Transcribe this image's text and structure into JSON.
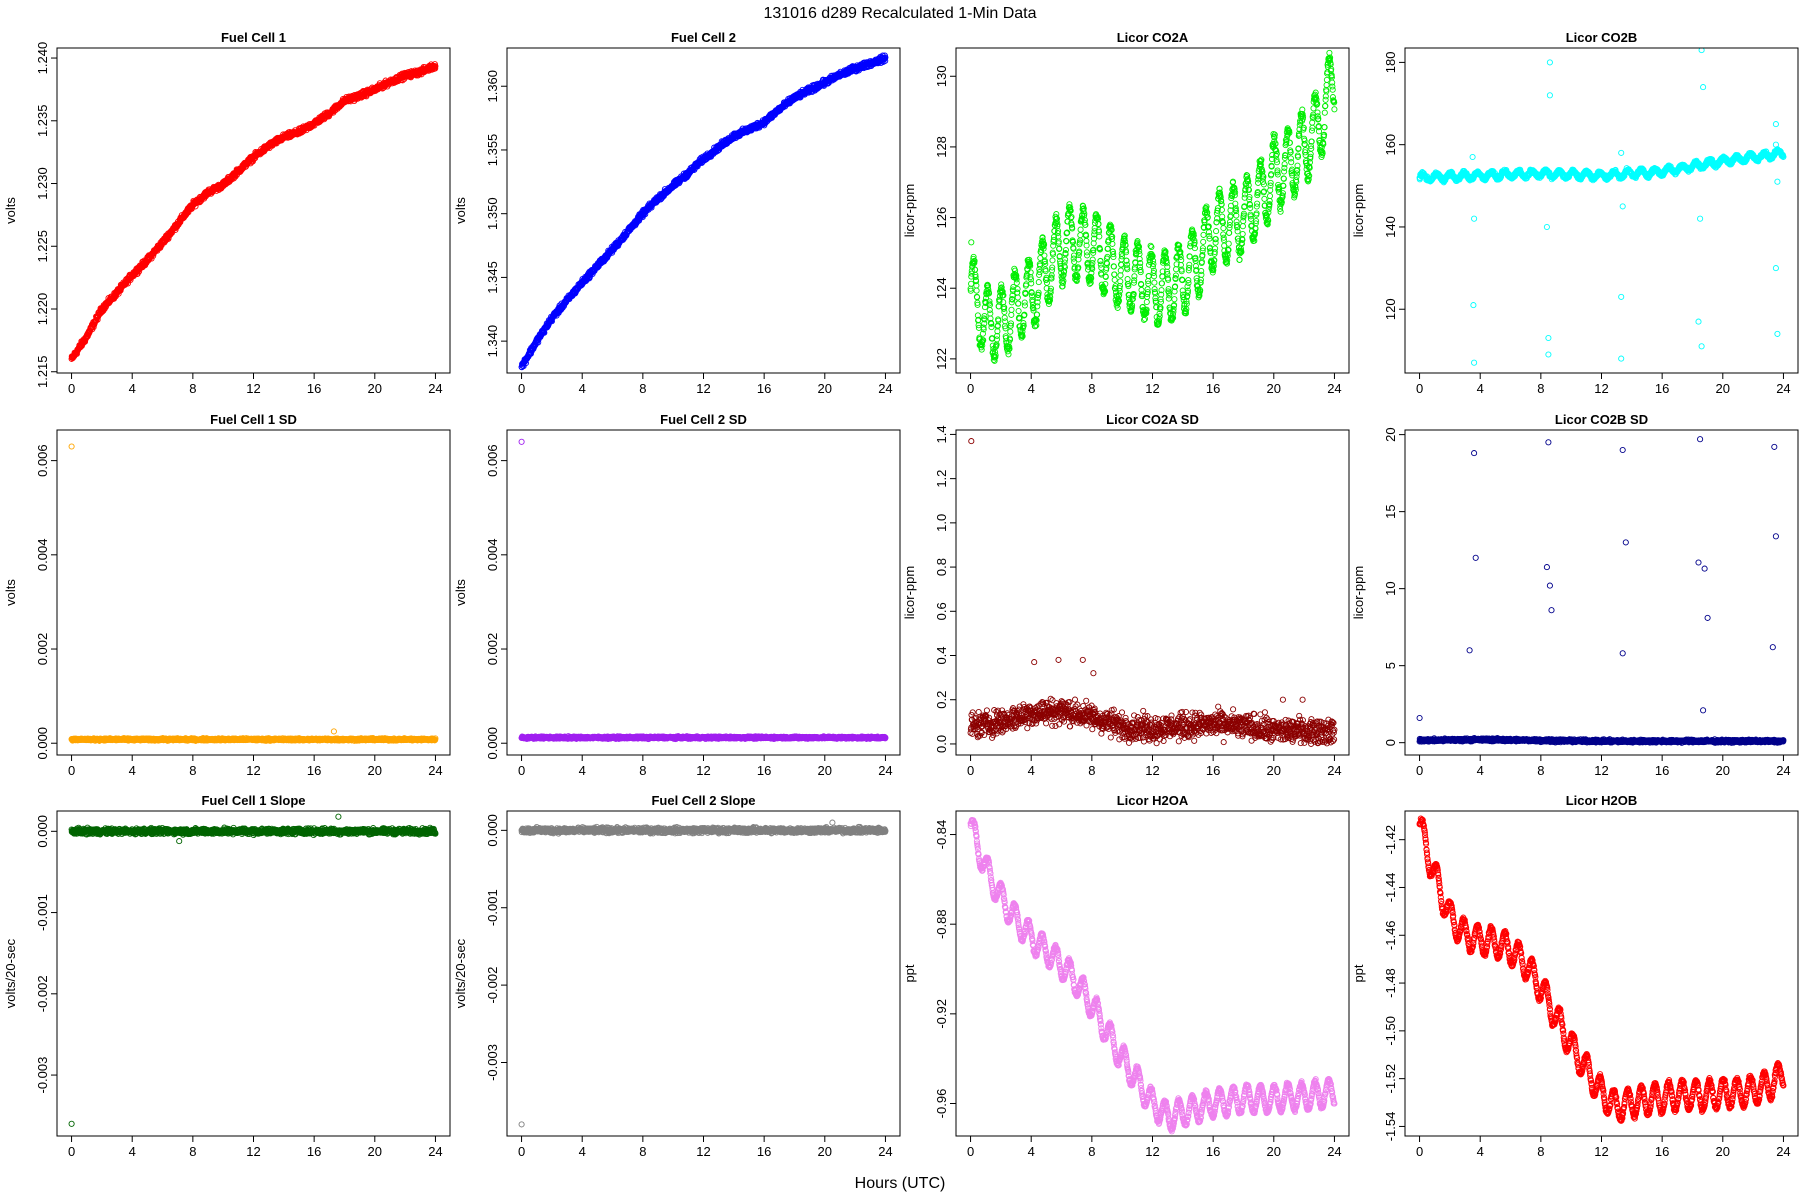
{
  "figure": {
    "title": "131016   d289   Recalculated 1-Min Data",
    "xlabel": "Hours (UTC)"
  },
  "chart_data": [
    {
      "type": "scatter",
      "title": "Fuel Cell 1",
      "ylabel": "volts",
      "xlabel": "",
      "color": "#ff0000",
      "xlim": [
        -0.96,
        24.96
      ],
      "xticks": [
        0,
        4,
        8,
        12,
        16,
        20,
        24
      ],
      "ylim": [
        1.2149,
        1.2408
      ],
      "yticks": [
        1.215,
        1.22,
        1.225,
        1.23,
        1.235,
        1.24
      ],
      "x": [
        0,
        1,
        2,
        3,
        4,
        5,
        6,
        7,
        8,
        9,
        10,
        11,
        12,
        13,
        14,
        15,
        16,
        17,
        18,
        19,
        20,
        21,
        22,
        23,
        24
      ],
      "y": [
        1.216,
        1.2178,
        1.22,
        1.2213,
        1.2227,
        1.2239,
        1.2253,
        1.2268,
        1.2283,
        1.2293,
        1.2299,
        1.231,
        1.2321,
        1.233,
        1.2337,
        1.2341,
        1.2348,
        1.2356,
        1.2366,
        1.237,
        1.2375,
        1.2381,
        1.2386,
        1.2389,
        1.2394
      ],
      "noise": 0.0002,
      "count": 1440
    },
    {
      "type": "scatter",
      "title": "Fuel Cell 2",
      "ylabel": "volts",
      "xlabel": "",
      "color": "#0000ff",
      "xlim": [
        -0.96,
        24.96
      ],
      "xticks": [
        0,
        4,
        8,
        12,
        16,
        20,
        24
      ],
      "ylim": [
        1.3375,
        1.363
      ],
      "yticks": [
        1.34,
        1.345,
        1.35,
        1.355,
        1.36
      ],
      "x": [
        0,
        1,
        2,
        3,
        4,
        5,
        6,
        7,
        8,
        9,
        10,
        11,
        12,
        13,
        14,
        15,
        16,
        17,
        18,
        19,
        20,
        21,
        22,
        23,
        24
      ],
      "y": [
        1.338,
        1.34,
        1.3418,
        1.3432,
        1.3446,
        1.3459,
        1.3472,
        1.3486,
        1.35,
        1.3512,
        1.3522,
        1.3532,
        1.3543,
        1.3552,
        1.3561,
        1.3566,
        1.3572,
        1.3582,
        1.3591,
        1.3597,
        1.3603,
        1.3609,
        1.3614,
        1.3618,
        1.3622
      ],
      "noise": 0.0002,
      "count": 1440
    },
    {
      "type": "scatter",
      "title": "Licor CO2A",
      "ylabel": "licor-ppm",
      "xlabel": "",
      "color": "#00ee00",
      "xlim": [
        -0.96,
        24.96
      ],
      "xticks": [
        0,
        4,
        8,
        12,
        16,
        20,
        24
      ],
      "ylim": [
        121.6,
        130.8
      ],
      "yticks": [
        122,
        124,
        126,
        128,
        130
      ],
      "x": [
        0,
        1,
        2,
        3,
        4,
        5,
        6,
        7,
        8,
        9,
        10,
        11,
        12,
        13,
        14,
        15,
        16,
        17,
        18,
        19,
        20,
        21,
        22,
        23,
        24
      ],
      "y": [
        124.0,
        123.0,
        123.0,
        123.5,
        123.8,
        124.5,
        125.2,
        125.3,
        125.2,
        124.8,
        124.4,
        124.3,
        124.0,
        124.0,
        124.3,
        124.8,
        125.6,
        125.8,
        126.0,
        126.5,
        127.2,
        127.5,
        128.0,
        128.6,
        130.0
      ],
      "wave": [
        1.0,
        0.9
      ],
      "noise": 0.15,
      "count": 1440,
      "outliers": [
        [
          0.05,
          125.3
        ]
      ]
    },
    {
      "type": "scatter",
      "title": "Licor CO2B",
      "ylabel": "licor-ppm",
      "xlabel": "",
      "color": "#00ffff",
      "xlim": [
        -0.96,
        24.96
      ],
      "xticks": [
        0,
        4,
        8,
        12,
        16,
        20,
        24
      ],
      "ylim": [
        104.5,
        183.5
      ],
      "yticks": [
        120,
        140,
        160,
        180
      ],
      "x": [
        0,
        4,
        8,
        12,
        16,
        20,
        24
      ],
      "y": [
        152,
        152.5,
        153,
        152.5,
        153.5,
        156,
        158
      ],
      "wave": [
        0.8,
        0.9
      ],
      "noise": 0.4,
      "count": 1440,
      "outliers": [
        [
          3.5,
          157
        ],
        [
          3.6,
          142
        ],
        [
          3.55,
          121
        ],
        [
          3.6,
          107
        ],
        [
          8.6,
          180
        ],
        [
          8.6,
          172
        ],
        [
          8.4,
          140
        ],
        [
          8.5,
          113
        ],
        [
          8.5,
          109
        ],
        [
          13.3,
          158
        ],
        [
          13.4,
          145
        ],
        [
          13.3,
          123
        ],
        [
          13.3,
          108
        ],
        [
          18.6,
          183
        ],
        [
          18.7,
          174
        ],
        [
          18.5,
          142
        ],
        [
          18.4,
          117
        ],
        [
          18.6,
          111
        ],
        [
          23.5,
          165
        ],
        [
          23.5,
          160
        ],
        [
          23.6,
          151
        ],
        [
          23.5,
          130
        ],
        [
          23.6,
          114
        ]
      ]
    },
    {
      "type": "scatter",
      "title": "Fuel Cell 1 SD",
      "ylabel": "volts",
      "xlabel": "",
      "color": "#ffa500",
      "xlim": [
        -0.96,
        24.96
      ],
      "xticks": [
        0,
        4,
        8,
        12,
        16,
        20,
        24
      ],
      "ylim": [
        -0.00025,
        0.00665
      ],
      "yticks": [
        0,
        0.002,
        0.004,
        0.006
      ],
      "x": [
        0,
        24
      ],
      "y": [
        8e-05,
        8e-05
      ],
      "noise": 2e-05,
      "count": 1440,
      "outliers": [
        [
          0.0,
          0.0063
        ],
        [
          17.3,
          0.00025
        ]
      ]
    },
    {
      "type": "scatter",
      "title": "Fuel Cell 2 SD",
      "ylabel": "volts",
      "xlabel": "",
      "color": "#a020f0",
      "xlim": [
        -0.96,
        24.96
      ],
      "xticks": [
        0,
        4,
        8,
        12,
        16,
        20,
        24
      ],
      "ylim": [
        -0.00025,
        0.00665
      ],
      "yticks": [
        0,
        0.002,
        0.004,
        0.006
      ],
      "x": [
        0,
        24
      ],
      "y": [
        0.00012,
        0.00012
      ],
      "noise": 2e-05,
      "count": 1440,
      "outliers": [
        [
          0.0,
          0.0064
        ]
      ]
    },
    {
      "type": "scatter",
      "title": "Licor CO2A SD",
      "ylabel": "licor-ppm",
      "xlabel": "",
      "color": "#8b0000",
      "xlim": [
        -0.96,
        24.96
      ],
      "xticks": [
        0,
        4,
        8,
        12,
        16,
        20,
        24
      ],
      "ylim": [
        -0.05,
        1.42
      ],
      "yticks": [
        0,
        0.2,
        0.4,
        0.6,
        0.8,
        1.0,
        1.2,
        1.4
      ],
      "x": [
        0,
        2,
        4,
        6,
        8,
        10,
        12,
        14,
        16,
        18,
        20,
        22,
        24
      ],
      "y": [
        0.08,
        0.1,
        0.14,
        0.15,
        0.12,
        0.08,
        0.07,
        0.08,
        0.09,
        0.08,
        0.06,
        0.06,
        0.06
      ],
      "noise": 0.05,
      "count": 1200,
      "outliers": [
        [
          0.05,
          1.37
        ],
        [
          4.2,
          0.37
        ],
        [
          5.8,
          0.38
        ],
        [
          7.4,
          0.38
        ],
        [
          8.1,
          0.32
        ],
        [
          20.6,
          0.2
        ],
        [
          21.9,
          0.2
        ]
      ]
    },
    {
      "type": "scatter",
      "title": "Licor CO2B SD",
      "ylabel": "licor-ppm",
      "xlabel": "",
      "color": "#00008b",
      "xlim": [
        -0.96,
        24.96
      ],
      "xticks": [
        0,
        4,
        8,
        12,
        16,
        20,
        24
      ],
      "ylim": [
        -0.8,
        20.3
      ],
      "yticks": [
        0,
        5,
        10,
        15,
        20
      ],
      "x": [
        0,
        4,
        8,
        12,
        16,
        20,
        24
      ],
      "y": [
        0.15,
        0.2,
        0.15,
        0.1,
        0.1,
        0.1,
        0.1
      ],
      "noise": 0.08,
      "count": 1440,
      "outliers": [
        [
          0.0,
          1.6
        ],
        [
          3.3,
          6.0
        ],
        [
          3.6,
          18.8
        ],
        [
          3.7,
          12.0
        ],
        [
          8.5,
          19.5
        ],
        [
          8.4,
          11.4
        ],
        [
          8.6,
          10.2
        ],
        [
          8.7,
          8.6
        ],
        [
          13.4,
          19.0
        ],
        [
          13.4,
          5.8
        ],
        [
          13.6,
          13.0
        ],
        [
          18.5,
          19.7
        ],
        [
          18.4,
          11.7
        ],
        [
          18.8,
          11.3
        ],
        [
          19.0,
          8.1
        ],
        [
          18.7,
          2.1
        ],
        [
          23.4,
          19.2
        ],
        [
          23.5,
          13.4
        ],
        [
          23.3,
          6.2
        ]
      ]
    },
    {
      "type": "scatter",
      "title": "Fuel Cell 1 Slope",
      "ylabel": "volts/20-sec",
      "xlabel": "",
      "color": "#006400",
      "xlim": [
        -0.96,
        24.96
      ],
      "xticks": [
        0,
        4,
        8,
        12,
        16,
        20,
        24
      ],
      "ylim": [
        -0.00375,
        0.00025
      ],
      "yticks": [
        -0.003,
        -0.002,
        -0.001,
        0
      ],
      "x": [
        0,
        24
      ],
      "y": [
        0,
        0
      ],
      "noise": 3e-05,
      "count": 1440,
      "outliers": [
        [
          0.0,
          -0.0036
        ],
        [
          17.6,
          0.00018
        ],
        [
          7.1,
          -0.00012
        ]
      ]
    },
    {
      "type": "scatter",
      "title": "Fuel Cell 2 Slope",
      "ylabel": "volts/20-sec",
      "xlabel": "",
      "color": "#808080",
      "xlim": [
        -0.96,
        24.96
      ],
      "xticks": [
        0,
        4,
        8,
        12,
        16,
        20,
        24
      ],
      "ylim": [
        -0.00395,
        0.00025
      ],
      "yticks": [
        -0.003,
        -0.002,
        -0.001,
        0
      ],
      "x": [
        0,
        24
      ],
      "y": [
        0,
        0
      ],
      "noise": 3e-05,
      "count": 1440,
      "outliers": [
        [
          0.0,
          -0.0038
        ],
        [
          20.5,
          0.0001
        ]
      ]
    },
    {
      "type": "scatter",
      "title": "Licor H2OA",
      "ylabel": "ppt",
      "xlabel": "",
      "color": "#ee82ee",
      "xlim": [
        -0.96,
        24.96
      ],
      "xticks": [
        0,
        4,
        8,
        12,
        16,
        20,
        24
      ],
      "ylim": [
        -0.9745,
        -0.8295
      ],
      "yticks": [
        -0.96,
        -0.92,
        -0.88,
        -0.84
      ],
      "x": [
        0,
        1,
        2,
        3,
        4,
        5,
        6,
        7,
        8,
        9,
        10,
        11,
        12,
        13,
        14,
        15,
        16,
        17,
        18,
        19,
        20,
        21,
        22,
        23,
        24
      ],
      "y": [
        -0.836,
        -0.855,
        -0.868,
        -0.878,
        -0.886,
        -0.892,
        -0.898,
        -0.906,
        -0.916,
        -0.928,
        -0.94,
        -0.95,
        -0.96,
        -0.966,
        -0.964,
        -0.962,
        -0.96,
        -0.959,
        -0.958,
        -0.958,
        -0.958,
        -0.957,
        -0.957,
        -0.956,
        -0.955
      ],
      "wave": [
        0.006,
        0.9
      ],
      "noise": 0.0008,
      "count": 1440
    },
    {
      "type": "scatter",
      "title": "Licor H2OB",
      "ylabel": "ppt",
      "xlabel": "",
      "color": "#ff0000",
      "xlim": [
        -0.96,
        24.96
      ],
      "xticks": [
        0,
        4,
        8,
        12,
        16,
        20,
        24
      ],
      "ylim": [
        -1.544,
        -1.408
      ],
      "yticks": [
        -1.54,
        -1.52,
        -1.5,
        -1.48,
        -1.46,
        -1.44,
        -1.42
      ],
      "x": [
        0,
        1,
        2,
        3,
        4,
        5,
        6,
        7,
        8,
        9,
        10,
        11,
        12,
        13,
        14,
        15,
        16,
        17,
        18,
        19,
        20,
        21,
        22,
        23,
        24
      ],
      "y": [
        -1.414,
        -1.435,
        -1.452,
        -1.46,
        -1.462,
        -1.463,
        -1.466,
        -1.472,
        -1.482,
        -1.494,
        -1.506,
        -1.516,
        -1.526,
        -1.532,
        -1.53,
        -1.529,
        -1.528,
        -1.527,
        -1.527,
        -1.527,
        -1.526,
        -1.526,
        -1.525,
        -1.523,
        -1.518
      ],
      "wave": [
        0.006,
        0.9
      ],
      "noise": 0.0008,
      "count": 1440
    }
  ]
}
